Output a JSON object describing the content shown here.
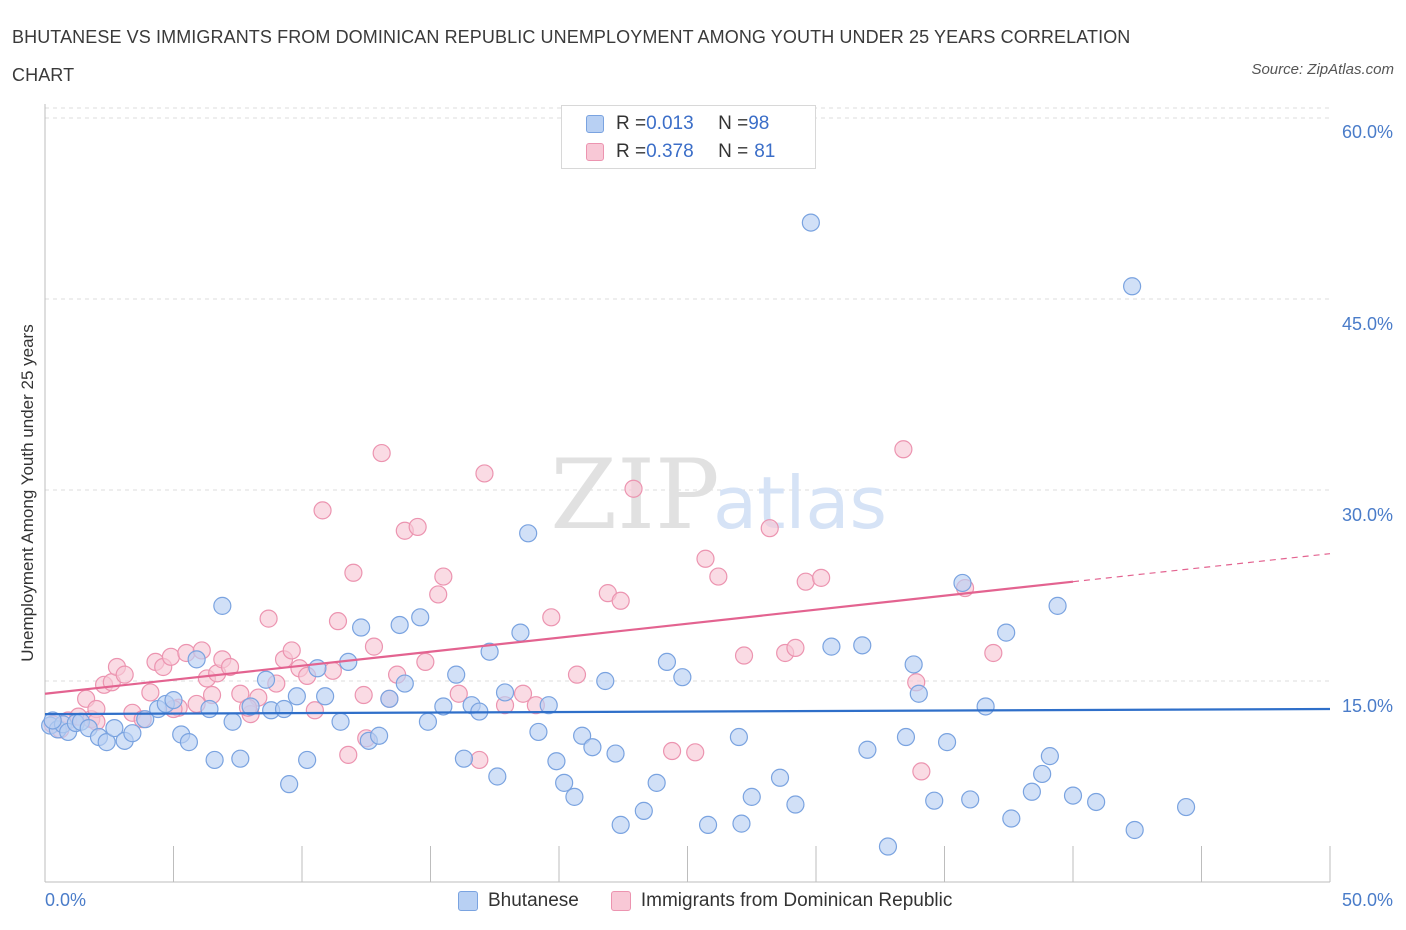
{
  "title": "BHUTANESE VS IMMIGRANTS FROM DOMINICAN REPUBLIC UNEMPLOYMENT AMONG YOUTH UNDER 25 YEARS CORRELATION CHART",
  "source": "Source: ZipAtlas.com",
  "watermark": {
    "zip": "ZIP",
    "atlas": "atlas"
  },
  "legend": {
    "rows": [
      {
        "r_label": "R = ",
        "r_value": "0.013",
        "n_label": "N = ",
        "n_value": "98"
      },
      {
        "r_label": "R = ",
        "r_value": "0.378",
        "n_label": "N = ",
        "n_value": "81"
      }
    ]
  },
  "colors": {
    "blue_fill": "#b8d0f3",
    "blue_stroke": "#7aa3e0",
    "blue_line": "#2f6fc9",
    "pink_fill": "#f8c8d6",
    "pink_stroke": "#ec94b0",
    "pink_line": "#e36390",
    "tick_text": "#4a7cc9",
    "grid": "#dcdcdc"
  },
  "chart_data": {
    "type": "scatter",
    "xlabel": "",
    "ylabel": "Unemployment Among Youth under 25 years",
    "xlim": [
      0,
      50
    ],
    "ylim": [
      0,
      60
    ],
    "x_tick_labels": [
      "0.0%",
      "50.0%"
    ],
    "y_tick_labels": [
      "15.0%",
      "30.0%",
      "45.0%",
      "60.0%"
    ],
    "y_ticks": [
      15,
      30,
      45,
      60
    ],
    "grid": true,
    "series": [
      {
        "name": "Bhutanese",
        "color": "#b8d0f3",
        "trend": {
          "x": [
            0,
            50
          ],
          "y": [
            12.4,
            12.8
          ]
        },
        "points": [
          [
            0.2,
            11.5
          ],
          [
            0.5,
            11.2
          ],
          [
            0.7,
            11.6
          ],
          [
            0.9,
            11.0
          ],
          [
            1.2,
            11.7
          ],
          [
            1.4,
            11.8
          ],
          [
            1.7,
            11.3
          ],
          [
            2.1,
            10.6
          ],
          [
            2.4,
            10.2
          ],
          [
            2.7,
            11.3
          ],
          [
            3.1,
            10.3
          ],
          [
            3.4,
            10.9
          ],
          [
            3.9,
            12.0
          ],
          [
            4.4,
            12.8
          ],
          [
            4.7,
            13.2
          ],
          [
            5.0,
            13.5
          ],
          [
            5.3,
            10.8
          ],
          [
            5.6,
            10.2
          ],
          [
            5.9,
            16.7
          ],
          [
            6.4,
            12.8
          ],
          [
            6.6,
            8.8
          ],
          [
            6.9,
            20.9
          ],
          [
            7.3,
            11.8
          ],
          [
            7.6,
            8.9
          ],
          [
            8.0,
            13.0
          ],
          [
            8.6,
            15.1
          ],
          [
            8.8,
            12.7
          ],
          [
            9.3,
            12.8
          ],
          [
            9.5,
            6.9
          ],
          [
            9.8,
            13.8
          ],
          [
            10.2,
            8.8
          ],
          [
            10.6,
            16.0
          ],
          [
            10.9,
            13.8
          ],
          [
            11.5,
            11.8
          ],
          [
            11.8,
            16.5
          ],
          [
            12.3,
            19.2
          ],
          [
            12.6,
            10.3
          ],
          [
            13.0,
            10.7
          ],
          [
            13.4,
            13.6
          ],
          [
            13.8,
            19.4
          ],
          [
            14.0,
            14.8
          ],
          [
            14.6,
            20.0
          ],
          [
            14.9,
            11.8
          ],
          [
            15.5,
            13.0
          ],
          [
            16.0,
            15.5
          ],
          [
            16.3,
            8.9
          ],
          [
            16.6,
            13.1
          ],
          [
            16.9,
            12.6
          ],
          [
            17.3,
            17.3
          ],
          [
            17.6,
            7.5
          ],
          [
            17.9,
            14.1
          ],
          [
            18.5,
            18.8
          ],
          [
            18.8,
            26.6
          ],
          [
            19.2,
            11.0
          ],
          [
            19.6,
            13.1
          ],
          [
            19.9,
            8.7
          ],
          [
            20.2,
            7.0
          ],
          [
            20.6,
            5.9
          ],
          [
            20.9,
            10.7
          ],
          [
            21.3,
            9.8
          ],
          [
            21.8,
            15.0
          ],
          [
            22.2,
            9.3
          ],
          [
            22.4,
            3.7
          ],
          [
            23.3,
            4.8
          ],
          [
            23.8,
            7.0
          ],
          [
            24.2,
            16.5
          ],
          [
            24.8,
            15.3
          ],
          [
            25.8,
            3.7
          ],
          [
            27.0,
            10.6
          ],
          [
            27.1,
            3.8
          ],
          [
            27.5,
            5.9
          ],
          [
            28.6,
            7.4
          ],
          [
            29.2,
            5.3
          ],
          [
            29.8,
            51.0
          ],
          [
            30.6,
            17.7
          ],
          [
            31.8,
            17.8
          ],
          [
            32.0,
            9.6
          ],
          [
            32.8,
            2.0
          ],
          [
            33.5,
            10.6
          ],
          [
            33.8,
            16.3
          ],
          [
            34.0,
            14.0
          ],
          [
            34.6,
            5.6
          ],
          [
            35.1,
            10.2
          ],
          [
            35.7,
            22.7
          ],
          [
            36.0,
            5.7
          ],
          [
            36.6,
            13.0
          ],
          [
            37.4,
            18.8
          ],
          [
            37.6,
            4.2
          ],
          [
            38.4,
            6.3
          ],
          [
            38.8,
            7.7
          ],
          [
            39.1,
            9.1
          ],
          [
            39.4,
            20.9
          ],
          [
            40.0,
            6.0
          ],
          [
            40.9,
            5.5
          ],
          [
            42.3,
            46.0
          ],
          [
            42.4,
            3.3
          ],
          [
            44.4,
            5.1
          ],
          [
            0.3,
            11.9
          ]
        ]
      },
      {
        "name": "Immigrants from Dominican Republic",
        "color": "#f8c8d6",
        "trend": {
          "x": [
            0,
            40
          ],
          "y": [
            14.0,
            22.8
          ]
        },
        "points": [
          [
            0.3,
            11.6
          ],
          [
            0.6,
            11.2
          ],
          [
            0.9,
            11.9
          ],
          [
            1.3,
            12.2
          ],
          [
            1.6,
            13.6
          ],
          [
            1.8,
            12.0
          ],
          [
            2.0,
            12.8
          ],
          [
            2.3,
            14.7
          ],
          [
            2.6,
            14.9
          ],
          [
            2.8,
            16.1
          ],
          [
            3.1,
            15.5
          ],
          [
            3.4,
            12.5
          ],
          [
            3.8,
            12.0
          ],
          [
            4.1,
            14.1
          ],
          [
            4.3,
            16.5
          ],
          [
            4.6,
            16.1
          ],
          [
            4.9,
            16.9
          ],
          [
            5.2,
            12.9
          ],
          [
            5.5,
            17.2
          ],
          [
            5.9,
            13.2
          ],
          [
            6.1,
            17.4
          ],
          [
            6.3,
            15.2
          ],
          [
            6.5,
            13.9
          ],
          [
            6.7,
            15.6
          ],
          [
            6.9,
            16.7
          ],
          [
            7.2,
            16.1
          ],
          [
            7.6,
            14.0
          ],
          [
            8.0,
            12.4
          ],
          [
            8.3,
            13.7
          ],
          [
            8.7,
            19.9
          ],
          [
            9.0,
            14.8
          ],
          [
            9.3,
            16.7
          ],
          [
            9.6,
            17.4
          ],
          [
            9.9,
            16.0
          ],
          [
            10.2,
            15.4
          ],
          [
            10.5,
            12.7
          ],
          [
            10.8,
            28.4
          ],
          [
            11.2,
            15.8
          ],
          [
            11.4,
            19.7
          ],
          [
            11.8,
            9.2
          ],
          [
            12.0,
            23.5
          ],
          [
            12.4,
            13.9
          ],
          [
            12.8,
            17.7
          ],
          [
            13.1,
            32.9
          ],
          [
            13.4,
            13.6
          ],
          [
            13.7,
            15.5
          ],
          [
            14.0,
            26.8
          ],
          [
            14.5,
            27.1
          ],
          [
            14.8,
            16.5
          ],
          [
            15.3,
            21.8
          ],
          [
            15.5,
            23.2
          ],
          [
            16.1,
            14.0
          ],
          [
            16.9,
            8.8
          ],
          [
            17.1,
            31.3
          ],
          [
            17.9,
            13.1
          ],
          [
            18.6,
            14.0
          ],
          [
            19.1,
            13.1
          ],
          [
            19.7,
            20.0
          ],
          [
            20.7,
            15.5
          ],
          [
            21.9,
            21.9
          ],
          [
            22.4,
            21.3
          ],
          [
            22.9,
            30.1
          ],
          [
            24.4,
            9.5
          ],
          [
            25.3,
            9.4
          ],
          [
            25.7,
            24.6
          ],
          [
            26.2,
            23.2
          ],
          [
            27.2,
            17.0
          ],
          [
            28.2,
            27.0
          ],
          [
            28.8,
            17.2
          ],
          [
            29.2,
            17.6
          ],
          [
            29.6,
            22.8
          ],
          [
            30.2,
            23.1
          ],
          [
            33.4,
            33.2
          ],
          [
            33.9,
            14.9
          ],
          [
            34.1,
            7.9
          ],
          [
            35.8,
            22.3
          ],
          [
            36.9,
            17.2
          ],
          [
            12.5,
            10.5
          ],
          [
            2.0,
            11.8
          ],
          [
            7.9,
            12.9
          ],
          [
            5.0,
            12.8
          ]
        ]
      }
    ]
  }
}
